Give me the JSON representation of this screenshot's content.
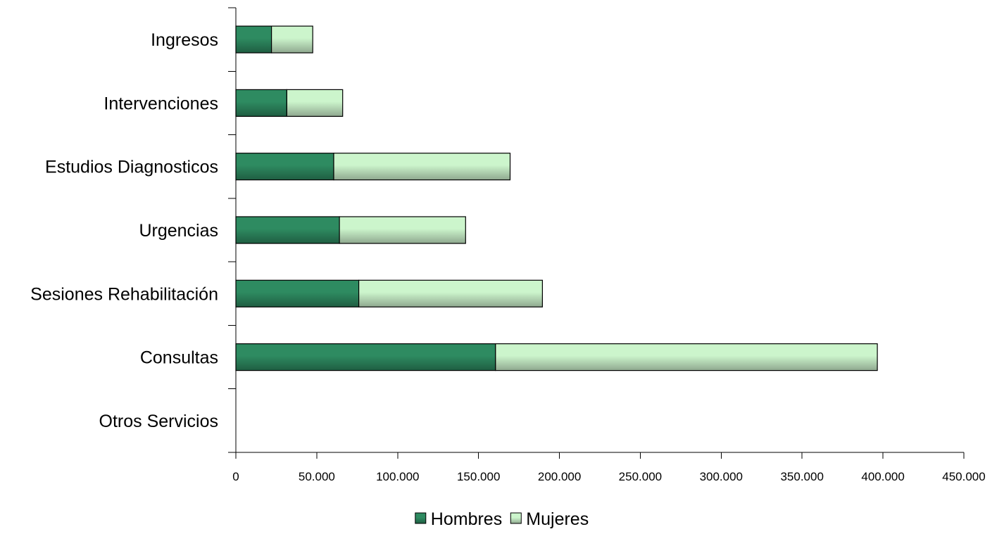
{
  "chart_data": {
    "type": "bar",
    "orientation": "horizontal",
    "stacked": true,
    "title": "",
    "xlabel": "",
    "ylabel": "",
    "categories": [
      "Ingresos",
      "Intervenciones",
      "Estudios Diagnosticos",
      "Urgencias",
      "Sesiones Rehabilitación",
      "Consultas",
      "Otros Servicios"
    ],
    "series": [
      {
        "name": "Hombres",
        "color": "#2e8b61",
        "color_dark": "#1f5e42",
        "values": [
          22000,
          31500,
          60500,
          64000,
          76000,
          160500,
          0
        ]
      },
      {
        "name": "Mujeres",
        "color": "#ccf5cc",
        "color_dark": "#8fa88f",
        "values": [
          25500,
          34500,
          109000,
          78000,
          113500,
          236000,
          0
        ]
      }
    ],
    "xlim": [
      0,
      450000
    ],
    "x_ticks": [
      0,
      50000,
      100000,
      150000,
      200000,
      250000,
      300000,
      350000,
      400000,
      450000
    ],
    "x_tick_labels": [
      "0",
      "50.000",
      "100.000",
      "150.000",
      "200.000",
      "250.000",
      "300.000",
      "350.000",
      "400.000",
      "450.000"
    ],
    "grid": false,
    "legend_position": "bottom"
  }
}
